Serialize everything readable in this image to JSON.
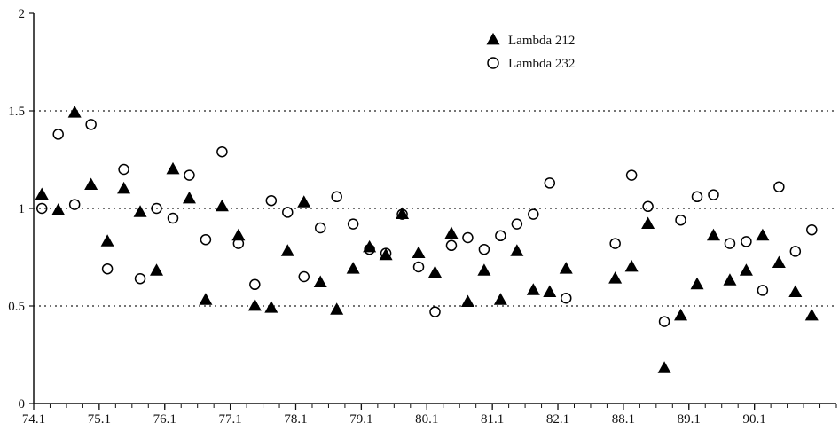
{
  "chart_data": {
    "type": "scatter",
    "title": "",
    "xlabel": "",
    "ylabel": "",
    "ylim": [
      0,
      2
    ],
    "yticks": [
      0,
      0.5,
      1,
      1.5,
      2
    ],
    "ytick_labels": [
      "0",
      "0.5",
      "1",
      "1.5",
      "2"
    ],
    "gridlines_dotted_at": [
      0.5,
      1,
      1.5
    ],
    "x_tick_labels": [
      "74.1",
      "75.1",
      "76.1",
      "77.1",
      "78.1",
      "79.1",
      "80.1",
      "81.1",
      "82.1",
      "88.1",
      "89.1",
      "90.1"
    ],
    "x_tick_index": [
      0,
      4,
      8,
      12,
      16,
      20,
      24,
      28,
      32,
      36,
      40,
      44
    ],
    "x_index_range": [
      0,
      49
    ],
    "legend_position": "top-center",
    "series": [
      {
        "name": "Lambda 212",
        "marker": "filled-triangle",
        "color": "#000000",
        "points": [
          {
            "x": 0.5,
            "y": 1.07
          },
          {
            "x": 1.5,
            "y": 0.99
          },
          {
            "x": 2.5,
            "y": 1.49
          },
          {
            "x": 3.5,
            "y": 1.12
          },
          {
            "x": 4.5,
            "y": 0.83
          },
          {
            "x": 5.5,
            "y": 1.1
          },
          {
            "x": 6.5,
            "y": 0.98
          },
          {
            "x": 7.5,
            "y": 0.68
          },
          {
            "x": 8.5,
            "y": 1.2
          },
          {
            "x": 9.5,
            "y": 1.05
          },
          {
            "x": 10.5,
            "y": 0.53
          },
          {
            "x": 11.5,
            "y": 1.01
          },
          {
            "x": 12.5,
            "y": 0.86
          },
          {
            "x": 13.5,
            "y": 0.5
          },
          {
            "x": 14.5,
            "y": 0.49
          },
          {
            "x": 15.5,
            "y": 0.78
          },
          {
            "x": 16.5,
            "y": 1.03
          },
          {
            "x": 17.5,
            "y": 0.62
          },
          {
            "x": 18.5,
            "y": 0.48
          },
          {
            "x": 19.5,
            "y": 0.69
          },
          {
            "x": 20.5,
            "y": 0.8
          },
          {
            "x": 21.5,
            "y": 0.76
          },
          {
            "x": 22.5,
            "y": 0.97
          },
          {
            "x": 23.5,
            "y": 0.77
          },
          {
            "x": 24.5,
            "y": 0.67
          },
          {
            "x": 25.5,
            "y": 0.87
          },
          {
            "x": 26.5,
            "y": 0.52
          },
          {
            "x": 27.5,
            "y": 0.68
          },
          {
            "x": 28.5,
            "y": 0.53
          },
          {
            "x": 29.5,
            "y": 0.78
          },
          {
            "x": 30.5,
            "y": 0.58
          },
          {
            "x": 31.5,
            "y": 0.57
          },
          {
            "x": 32.5,
            "y": 0.69
          },
          {
            "x": 35.5,
            "y": 0.64
          },
          {
            "x": 36.5,
            "y": 0.7
          },
          {
            "x": 37.5,
            "y": 0.92
          },
          {
            "x": 38.5,
            "y": 0.18
          },
          {
            "x": 39.5,
            "y": 0.45
          },
          {
            "x": 40.5,
            "y": 0.61
          },
          {
            "x": 41.5,
            "y": 0.86
          },
          {
            "x": 42.5,
            "y": 0.63
          },
          {
            "x": 43.5,
            "y": 0.68
          },
          {
            "x": 44.5,
            "y": 0.86
          },
          {
            "x": 45.5,
            "y": 0.72
          },
          {
            "x": 46.5,
            "y": 0.57
          },
          {
            "x": 47.5,
            "y": 0.45
          }
        ]
      },
      {
        "name": "Lambda 232",
        "marker": "open-circle",
        "color": "#000000",
        "points": [
          {
            "x": 0.5,
            "y": 1.0
          },
          {
            "x": 1.5,
            "y": 1.38
          },
          {
            "x": 2.5,
            "y": 1.02
          },
          {
            "x": 3.5,
            "y": 1.43
          },
          {
            "x": 4.5,
            "y": 0.69
          },
          {
            "x": 5.5,
            "y": 1.2
          },
          {
            "x": 6.5,
            "y": 0.64
          },
          {
            "x": 7.5,
            "y": 1.0
          },
          {
            "x": 8.5,
            "y": 0.95
          },
          {
            "x": 9.5,
            "y": 1.17
          },
          {
            "x": 10.5,
            "y": 0.84
          },
          {
            "x": 11.5,
            "y": 1.29
          },
          {
            "x": 12.5,
            "y": 0.82
          },
          {
            "x": 13.5,
            "y": 0.61
          },
          {
            "x": 14.5,
            "y": 1.04
          },
          {
            "x": 15.5,
            "y": 0.98
          },
          {
            "x": 16.5,
            "y": 0.65
          },
          {
            "x": 17.5,
            "y": 0.9
          },
          {
            "x": 18.5,
            "y": 1.06
          },
          {
            "x": 19.5,
            "y": 0.92
          },
          {
            "x": 20.5,
            "y": 0.79
          },
          {
            "x": 21.5,
            "y": 0.77
          },
          {
            "x": 22.5,
            "y": 0.97
          },
          {
            "x": 23.5,
            "y": 0.7
          },
          {
            "x": 24.5,
            "y": 0.47
          },
          {
            "x": 25.5,
            "y": 0.81
          },
          {
            "x": 26.5,
            "y": 0.85
          },
          {
            "x": 27.5,
            "y": 0.79
          },
          {
            "x": 28.5,
            "y": 0.86
          },
          {
            "x": 29.5,
            "y": 0.92
          },
          {
            "x": 30.5,
            "y": 0.97
          },
          {
            "x": 31.5,
            "y": 1.13
          },
          {
            "x": 32.5,
            "y": 0.54
          },
          {
            "x": 35.5,
            "y": 0.82
          },
          {
            "x": 36.5,
            "y": 1.17
          },
          {
            "x": 37.5,
            "y": 1.01
          },
          {
            "x": 38.5,
            "y": 0.42
          },
          {
            "x": 39.5,
            "y": 0.94
          },
          {
            "x": 40.5,
            "y": 1.06
          },
          {
            "x": 41.5,
            "y": 1.07
          },
          {
            "x": 42.5,
            "y": 0.82
          },
          {
            "x": 43.5,
            "y": 0.83
          },
          {
            "x": 44.5,
            "y": 0.58
          },
          {
            "x": 45.5,
            "y": 1.11
          },
          {
            "x": 46.5,
            "y": 0.78
          },
          {
            "x": 47.5,
            "y": 0.89
          }
        ]
      }
    ]
  }
}
